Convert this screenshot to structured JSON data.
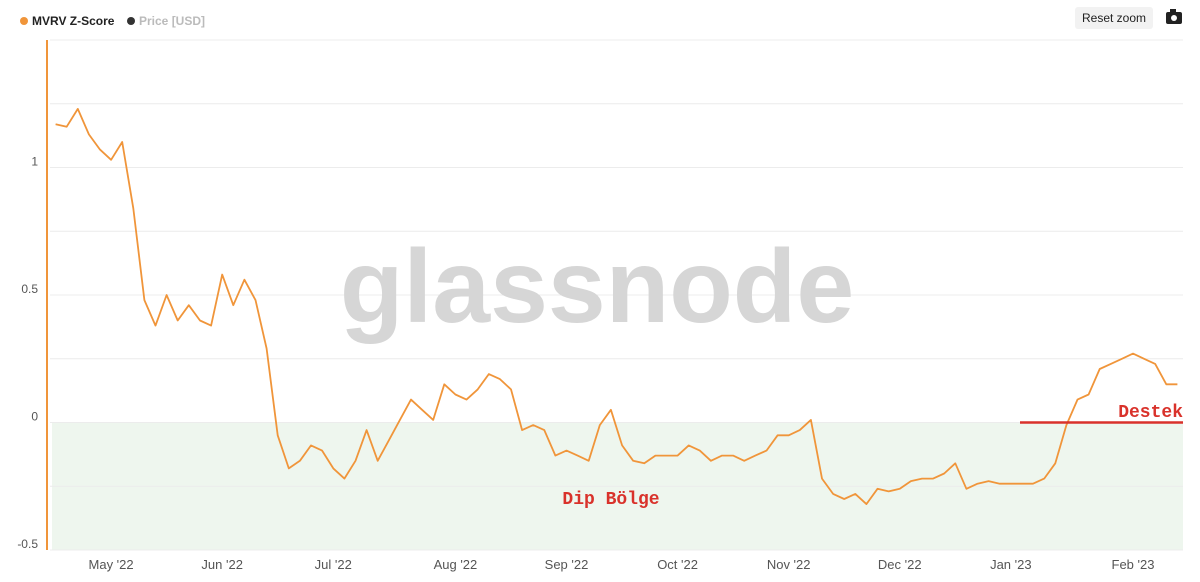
{
  "chart_data": {
    "type": "line",
    "series": [
      {
        "name": "MVRV Z-Score",
        "color": "#f0953a",
        "values": [
          1.17,
          1.16,
          1.23,
          1.13,
          1.07,
          1.03,
          1.1,
          0.84,
          0.48,
          0.38,
          0.5,
          0.4,
          0.46,
          0.4,
          0.38,
          0.58,
          0.46,
          0.56,
          0.48,
          0.29,
          -0.05,
          -0.18,
          -0.15,
          -0.09,
          -0.11,
          -0.18,
          -0.22,
          -0.15,
          -0.03,
          -0.15,
          -0.07,
          0.01,
          0.09,
          0.05,
          0.01,
          0.15,
          0.11,
          0.09,
          0.13,
          0.19,
          0.17,
          0.13,
          -0.03,
          -0.01,
          -0.03,
          -0.13,
          -0.11,
          -0.13,
          -0.15,
          -0.01,
          0.05,
          -0.09,
          -0.15,
          -0.16,
          -0.13,
          -0.13,
          -0.13,
          -0.09,
          -0.11,
          -0.15,
          -0.13,
          -0.13,
          -0.15,
          -0.13,
          -0.11,
          -0.05,
          -0.05,
          -0.03,
          0.01,
          -0.22,
          -0.28,
          -0.3,
          -0.28,
          -0.32,
          -0.26,
          -0.27,
          -0.26,
          -0.23,
          -0.22,
          -0.22,
          -0.2,
          -0.16,
          -0.26,
          -0.24,
          -0.23,
          -0.24,
          -0.24,
          -0.24,
          -0.24,
          -0.22,
          -0.16,
          -0.01,
          0.09,
          0.11,
          0.21,
          0.23,
          0.25,
          0.27,
          0.25,
          0.23,
          0.15,
          0.15
        ]
      }
    ],
    "hidden_series": [
      {
        "name": "Price [USD]",
        "color": "#333333"
      }
    ],
    "categories": [
      null,
      null,
      null,
      null,
      null,
      "May '22",
      null,
      null,
      null,
      null,
      null,
      null,
      null,
      null,
      null,
      "Jun '22",
      null,
      null,
      null,
      null,
      null,
      null,
      null,
      null,
      null,
      "Jul '22",
      null,
      null,
      null,
      null,
      null,
      null,
      null,
      null,
      null,
      null,
      "Aug '22",
      null,
      null,
      null,
      null,
      null,
      null,
      null,
      null,
      null,
      "Sep '22",
      null,
      null,
      null,
      null,
      null,
      null,
      null,
      null,
      null,
      "Oct '22",
      null,
      null,
      null,
      null,
      null,
      null,
      null,
      null,
      null,
      "Nov '22",
      null,
      null,
      null,
      null,
      null,
      null,
      null,
      null,
      null,
      "Dec '22",
      null,
      null,
      null,
      null,
      null,
      null,
      null,
      null,
      null,
      "Jan '23",
      null,
      null,
      null,
      null,
      null,
      null,
      null,
      null,
      null,
      null,
      "Feb '23",
      null,
      null,
      null,
      null
    ],
    "ylim": [
      -0.5,
      1.5
    ],
    "yticks": [
      -0.5,
      0,
      0.5,
      1
    ],
    "minor_grid": [
      -0.25,
      0.25,
      0.75,
      1.25,
      1.5
    ],
    "grid": true,
    "zone": {
      "from": -0.5,
      "to": 0,
      "color": "#eef6ee"
    },
    "support": {
      "value": 0,
      "label": "Destek",
      "color": "#d9322b"
    },
    "annotations": [
      {
        "text": "Dip Bölge",
        "color": "#d9322b"
      }
    ],
    "watermark": "glassnode"
  },
  "ui": {
    "reset_zoom": "Reset zoom"
  }
}
